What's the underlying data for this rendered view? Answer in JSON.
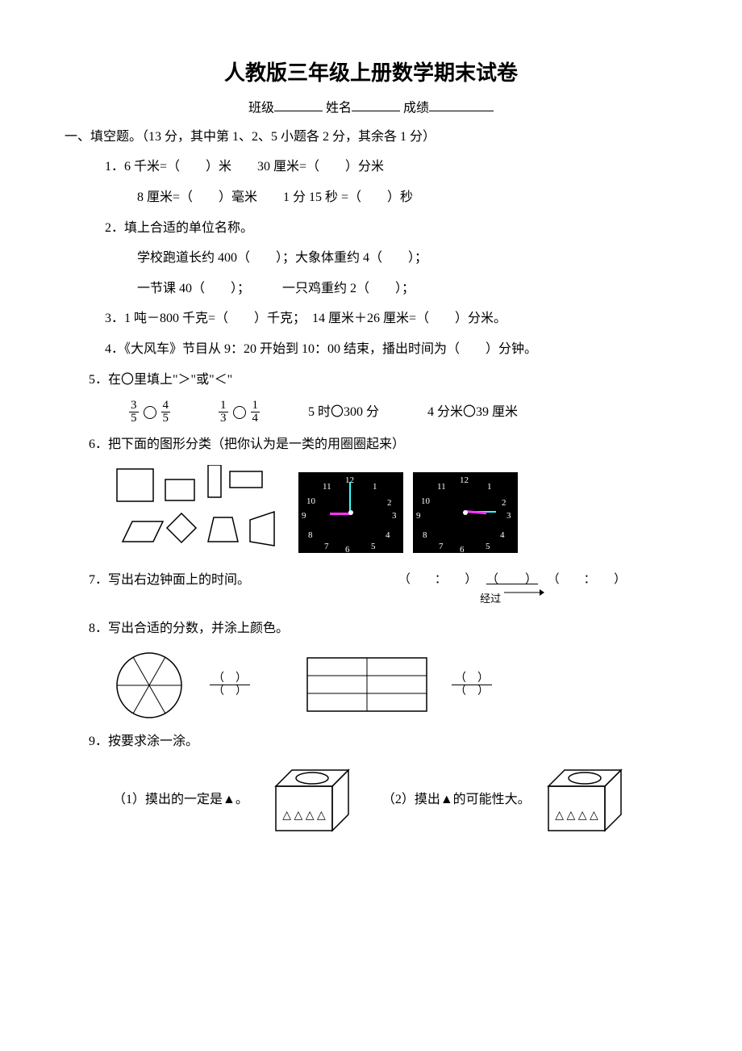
{
  "title": "人教版三年级上册数学期末试卷",
  "info": {
    "class": "班级",
    "name": "姓名",
    "score": "成绩"
  },
  "section1": {
    "head": "一、填空题。（13 分，其中第 1、2、5 小题各 2 分，其余各 1 分）",
    "q1a": "1．6 千米=（　　）米　　30 厘米=（　　）分米",
    "q1b": "8 厘米=（　　）毫米　　1 分 15 秒 =（　　）秒",
    "q2": "2．填上合适的单位名称。",
    "q2a": "学校跑道长约 400（　　）；大象体重约 4（　　）；",
    "q2b": "一节课 40（　　）；　　　一只鸡重约 2（　　）；",
    "q3": "3．1 吨－800 千克=（　　）千克；　14 厘米＋26 厘米=（　　）分米。",
    "q4": "4．《大风车》节目从 9：20 开始到 10：00 结束，播出时间为（　　）分钟。",
    "q5": "5．在〇里填上\"＞\"或\"＜\"",
    "q5c": "5 时〇300 分",
    "q5d": "4 分米〇39 厘米",
    "q6": "6．把下面的图形分类（把你认为是一类的用圈圈起来）",
    "q7": "7．写出右边钟面上的时间。",
    "q7mid": "经过",
    "q8": "8．写出合适的分数，并涂上颜色。",
    "q9": "9．按要求涂一涂。",
    "q9a": "（1）摸出的一定是▲。",
    "q9b": "（2）摸出▲的可能性大。"
  },
  "fracs": {
    "a_num": "3",
    "a_den": "5",
    "b_num": "4",
    "b_den": "5",
    "c_num": "1",
    "c_den": "3",
    "d_num": "1",
    "d_den": "4"
  },
  "clock_numbers": [
    "12",
    "1",
    "2",
    "3",
    "4",
    "5",
    "6",
    "7",
    "8",
    "9",
    "10",
    "11"
  ],
  "clock1": {
    "hour_deg": -90,
    "min_deg": 0,
    "hour_color": "#ff33ff",
    "min_color": "#33ffff"
  },
  "clock2": {
    "hour_deg": 95,
    "min_deg": 90,
    "hour_color": "#ff33ff",
    "min_color": "#33ffff"
  },
  "box_tris": "△ △ △ △",
  "paren_blank": "（　　）",
  "colon_blank": "（　　：　　）"
}
